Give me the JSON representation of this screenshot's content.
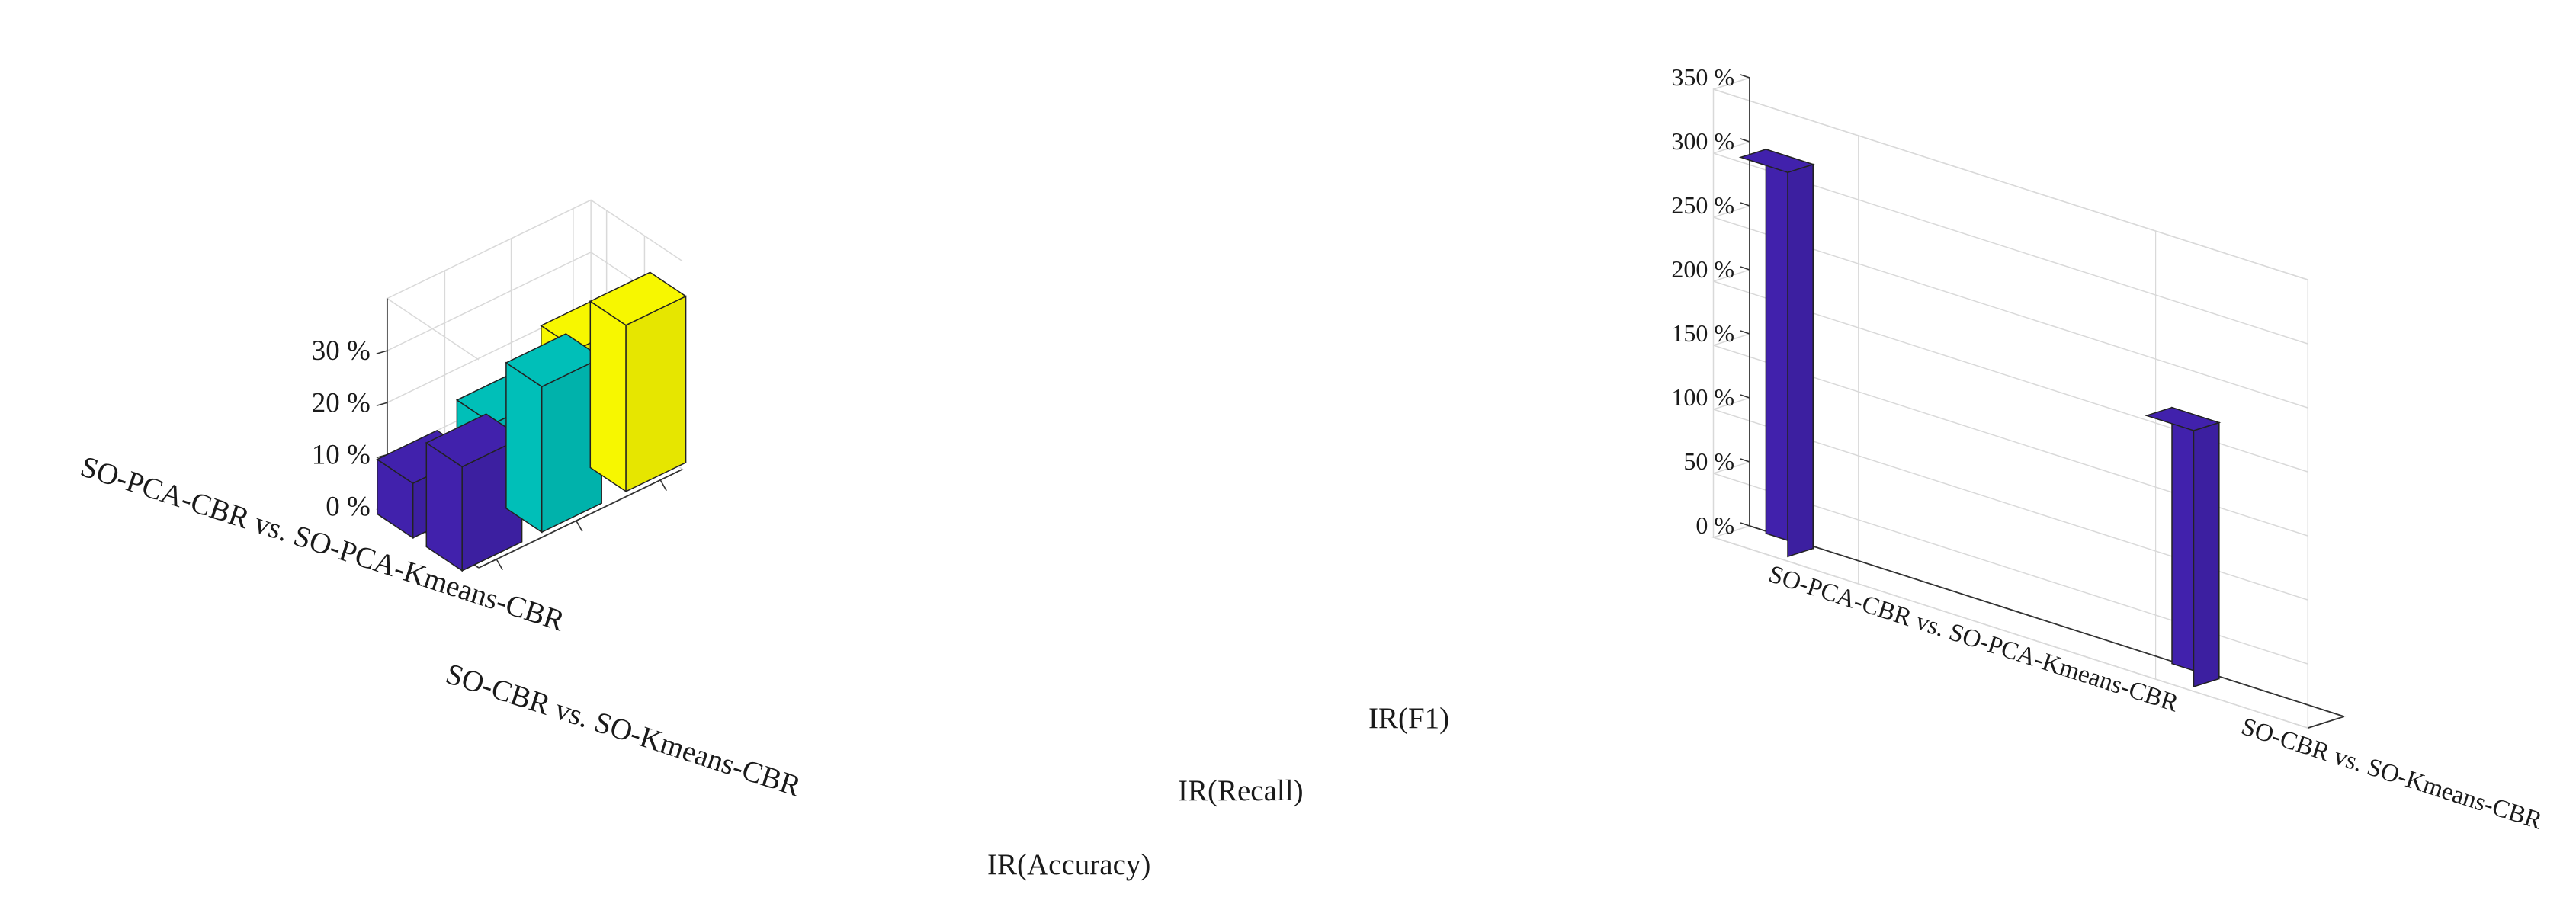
{
  "chart_data": [
    {
      "type": "bar",
      "variant": "3d-grouped",
      "categories": [
        "SO-PCA-CBR vs. SO-PCA-Kmeans-CBR",
        "SO-CBR vs. SO-Kmeans-CBR"
      ],
      "depth_categories": [
        "IR(Accuracy)",
        "IR(Recall)",
        "IR(F1)"
      ],
      "series": [
        {
          "name": "IR(Accuracy)",
          "values": [
            10.5,
            20.0
          ],
          "color": "#4121ac"
        },
        {
          "name": "IR(Recall)",
          "values": [
            14.5,
            28.0
          ],
          "color": "#00bfb8"
        },
        {
          "name": "IR(F1)",
          "values": [
            21.0,
            32.0
          ],
          "color": "#f7f700"
        }
      ],
      "zticks": [
        "0 %",
        "10 %",
        "20 %",
        "30 %"
      ],
      "zlim": [
        0,
        40
      ],
      "grid": true
    },
    {
      "type": "bar",
      "variant": "3d",
      "categories": [
        "SO-PCA-CBR vs. SO-PCA-Kmeans-CBR",
        "SO-CBR vs. SO-Kmeans-CBR"
      ],
      "values": [
        300,
        200
      ],
      "color": "#4121ac",
      "zticks": [
        "0 %",
        "50 %",
        "100 %",
        "150 %",
        "200 %",
        "250 %",
        "300 %",
        "350 %"
      ],
      "zlim": [
        0,
        350
      ],
      "grid": true
    }
  ]
}
